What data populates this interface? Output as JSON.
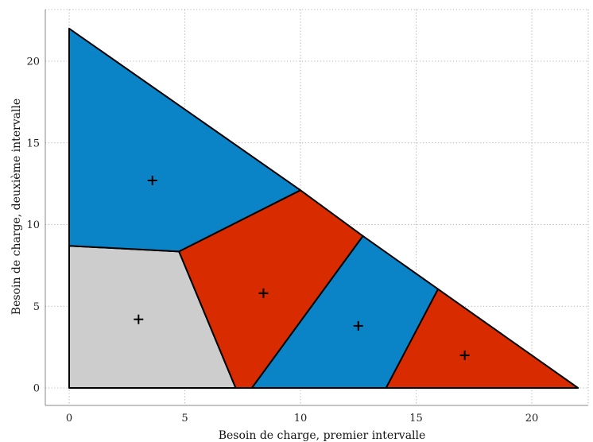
{
  "chart_data": {
    "type": "voronoi",
    "xlabel": "Besoin de charge, premier intervalle",
    "ylabel": "Besoin de charge, deuxième intervalle",
    "xlim": [
      0,
      22
    ],
    "ylim": [
      0,
      22
    ],
    "xticks": [
      0,
      5,
      10,
      15,
      20
    ],
    "yticks": [
      0,
      5,
      10,
      15,
      20
    ],
    "xtick_labels": [
      "0",
      "5",
      "10",
      "15",
      "20"
    ],
    "ytick_labels": [
      "0",
      "5",
      "10",
      "15",
      "20"
    ],
    "grid": true,
    "colors": {
      "blue": "#0a84c6",
      "red": "#d92b00",
      "gray": "#cdcdcd"
    },
    "regions": [
      {
        "color": "gray",
        "polygon": [
          [
            0,
            0
          ],
          [
            7.2,
            0
          ],
          [
            4.75,
            8.35
          ],
          [
            0,
            8.7
          ]
        ],
        "centroid": [
          3.0,
          4.2
        ]
      },
      {
        "color": "blue",
        "polygon": [
          [
            0,
            8.7
          ],
          [
            4.75,
            8.35
          ],
          [
            10.0,
            12.1
          ],
          [
            0,
            22
          ]
        ],
        "centroid": [
          3.6,
          12.7
        ]
      },
      {
        "color": "red",
        "polygon": [
          [
            7.2,
            0
          ],
          [
            7.9,
            0
          ],
          [
            12.7,
            9.3
          ],
          [
            10.0,
            12.1
          ],
          [
            4.75,
            8.35
          ]
        ],
        "centroid": [
          8.4,
          5.8
        ]
      },
      {
        "color": "blue",
        "polygon": [
          [
            7.9,
            0
          ],
          [
            13.7,
            0
          ],
          [
            15.95,
            6.05
          ],
          [
            12.7,
            9.3
          ]
        ],
        "centroid": [
          12.5,
          3.8
        ]
      },
      {
        "color": "red",
        "polygon": [
          [
            13.7,
            0
          ],
          [
            22,
            0
          ],
          [
            15.95,
            6.05
          ]
        ],
        "centroid": [
          17.1,
          2.0
        ]
      }
    ]
  }
}
